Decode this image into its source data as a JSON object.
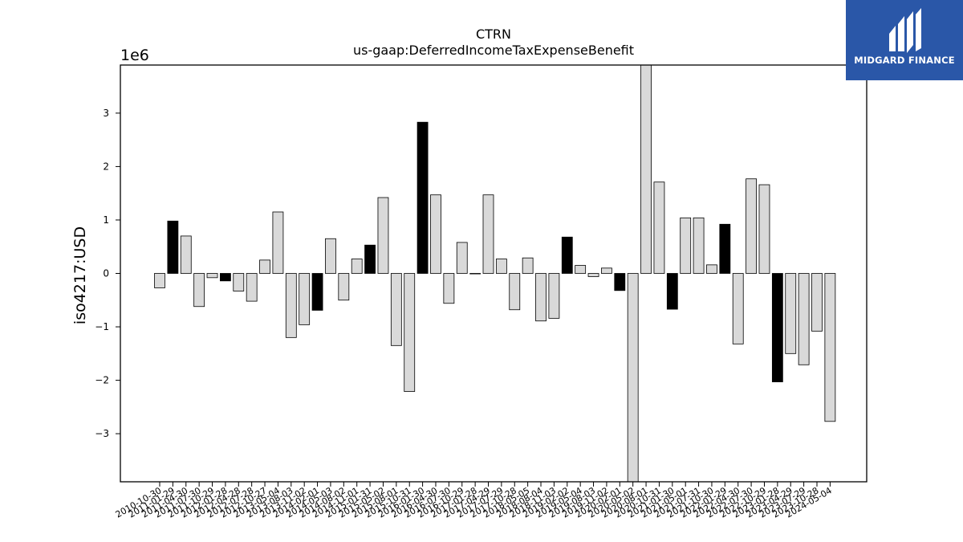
{
  "chart_data": {
    "type": "bar",
    "title": "CTRN",
    "subtitle": "us-gaap:DeferredIncomeTaxExpenseBenefit",
    "ylabel": "iso4217:USD",
    "y_multiplier_label": "1e6",
    "ylim": [
      -3900000,
      3900000
    ],
    "yticks": [
      -3,
      -2,
      -1,
      0,
      1,
      2,
      3
    ],
    "ytick_labels": [
      "−3",
      "−2",
      "−1",
      "0",
      "1",
      "2",
      "3"
    ],
    "grid": false,
    "colors": {
      "default": "#d9d9d9",
      "highlight": "#000000",
      "edge": "#000000"
    },
    "categories": [
      "2010-10-30",
      "2011-01-29",
      "2011-04-30",
      "2011-07-30",
      "2011-10-29",
      "2012-01-28",
      "2012-04-28",
      "2012-07-28",
      "2012-10-27",
      "2013-05-04",
      "2013-08-03",
      "2013-11-02",
      "2014-02-01",
      "2014-05-03",
      "2014-08-02",
      "2014-11-01",
      "2015-01-31",
      "2015-05-02",
      "2015-08-01",
      "2015-10-31",
      "2016-01-30",
      "2016-04-30",
      "2016-07-30",
      "2016-10-29",
      "2017-01-28",
      "2017-04-29",
      "2017-07-29",
      "2017-10-28",
      "2018-05-05",
      "2018-08-04",
      "2018-11-03",
      "2019-02-02",
      "2019-05-04",
      "2019-08-03",
      "2019-11-02",
      "2020-02-01",
      "2020-05-02",
      "2020-08-01",
      "2020-10-31",
      "2021-01-30",
      "2021-05-01",
      "2021-07-31",
      "2021-10-30",
      "2022-01-29",
      "2022-04-30",
      "2022-07-30",
      "2022-10-29",
      "2023-01-28",
      "2023-04-29",
      "2023-07-29",
      "2023-10-28",
      "2024-05-04"
    ],
    "values": [
      -270000,
      980000,
      700000,
      -620000,
      -80000,
      -140000,
      -330000,
      -520000,
      250000,
      1150000,
      -1200000,
      -960000,
      -690000,
      650000,
      -500000,
      270000,
      530000,
      1420000,
      -1350000,
      -2210000,
      2830000,
      1470000,
      -560000,
      580000,
      0,
      1470000,
      270000,
      -680000,
      290000,
      -890000,
      -840000,
      680000,
      150000,
      -60000,
      100000,
      -320000,
      -3900000,
      3900000,
      1710000,
      -670000,
      1040000,
      1040000,
      160000,
      920000,
      -1320000,
      1770000,
      1660000,
      -2030000,
      -1500000,
      -1710000,
      -1080000,
      -2770000
    ],
    "highlighted": [
      false,
      true,
      false,
      false,
      false,
      true,
      false,
      false,
      false,
      false,
      false,
      false,
      true,
      false,
      false,
      false,
      true,
      false,
      false,
      false,
      true,
      false,
      false,
      false,
      false,
      false,
      false,
      false,
      false,
      false,
      false,
      true,
      false,
      false,
      false,
      true,
      false,
      false,
      false,
      true,
      false,
      false,
      false,
      true,
      false,
      false,
      false,
      true,
      false,
      false,
      false,
      false
    ]
  },
  "logo": {
    "text": "MIDGARD FINANCE",
    "icon": "midgard-logo-icon"
  }
}
